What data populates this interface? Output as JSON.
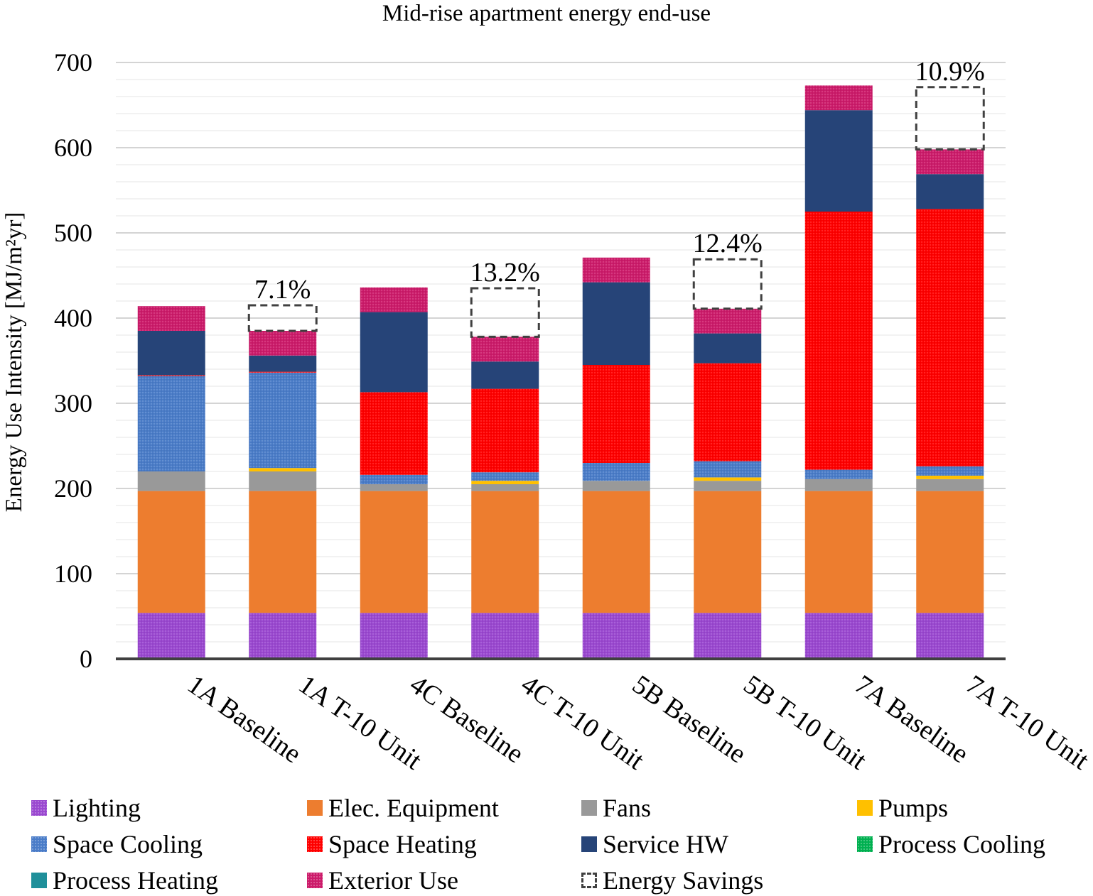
{
  "chart_data": {
    "type": "bar",
    "stacked": true,
    "title": "Mid-rise apartment energy end-use",
    "ylabel": "Energy Use Intensity [MJ/m²yr]",
    "xlabel": "",
    "ylim": [
      0,
      700
    ],
    "yticks": [
      0,
      100,
      200,
      300,
      400,
      500,
      600,
      700
    ],
    "grid": true,
    "legend_position": "bottom",
    "categories": [
      "1A Baseline",
      "1A T-10 Unit",
      "4C Baseline",
      "4C T-10 Unit",
      "5B Baseline",
      "5B T-10 Unit",
      "7A Baseline",
      "7A T-10 Unit"
    ],
    "series": [
      {
        "name": "Lighting",
        "color": "#9a48d0",
        "pattern": "dots",
        "values": [
          54,
          54,
          54,
          54,
          54,
          54,
          54,
          54
        ]
      },
      {
        "name": "Elec. Equipment",
        "color": "#ed7d2f",
        "pattern": "solid",
        "values": [
          143,
          143,
          143,
          143,
          143,
          143,
          143,
          143
        ]
      },
      {
        "name": "Fans",
        "color": "#999999",
        "pattern": "solid",
        "values": [
          23,
          23,
          8,
          8,
          12,
          12,
          14,
          14
        ]
      },
      {
        "name": "Pumps",
        "color": "#ffc000",
        "pattern": "solid",
        "values": [
          0,
          4,
          0,
          4,
          0,
          4,
          0,
          4
        ]
      },
      {
        "name": "Space Cooling",
        "color": "#4a7cc8",
        "pattern": "dots",
        "values": [
          112,
          112,
          11,
          10,
          21,
          19,
          11,
          11
        ]
      },
      {
        "name": "Space Heating",
        "color": "#ff0000",
        "pattern": "dots",
        "values": [
          1,
          1,
          97,
          98,
          115,
          115,
          303,
          302
        ]
      },
      {
        "name": "Service HW",
        "color": "#264478",
        "pattern": "solid",
        "values": [
          52,
          19,
          94,
          32,
          97,
          35,
          119,
          41
        ]
      },
      {
        "name": "Process Cooling",
        "color": "#00b050",
        "pattern": "dots",
        "values": [
          0,
          0,
          0,
          0,
          0,
          0,
          0,
          0
        ]
      },
      {
        "name": "Process Heating",
        "color": "#1f8f9a",
        "pattern": "solid",
        "values": [
          0,
          0,
          0,
          0,
          0,
          0,
          0,
          0
        ]
      },
      {
        "name": "Exterior Use",
        "color": "#cc1b6a",
        "pattern": "dots",
        "values": [
          29,
          29,
          29,
          29,
          29,
          29,
          29,
          29
        ]
      }
    ],
    "energy_savings": {
      "name": "Energy Savings",
      "labels": [
        "",
        "7.1%",
        "",
        "13.2%",
        "",
        "12.4%",
        "",
        "10.9%"
      ],
      "values": [
        0,
        30,
        0,
        57,
        0,
        58,
        0,
        73
      ]
    }
  }
}
